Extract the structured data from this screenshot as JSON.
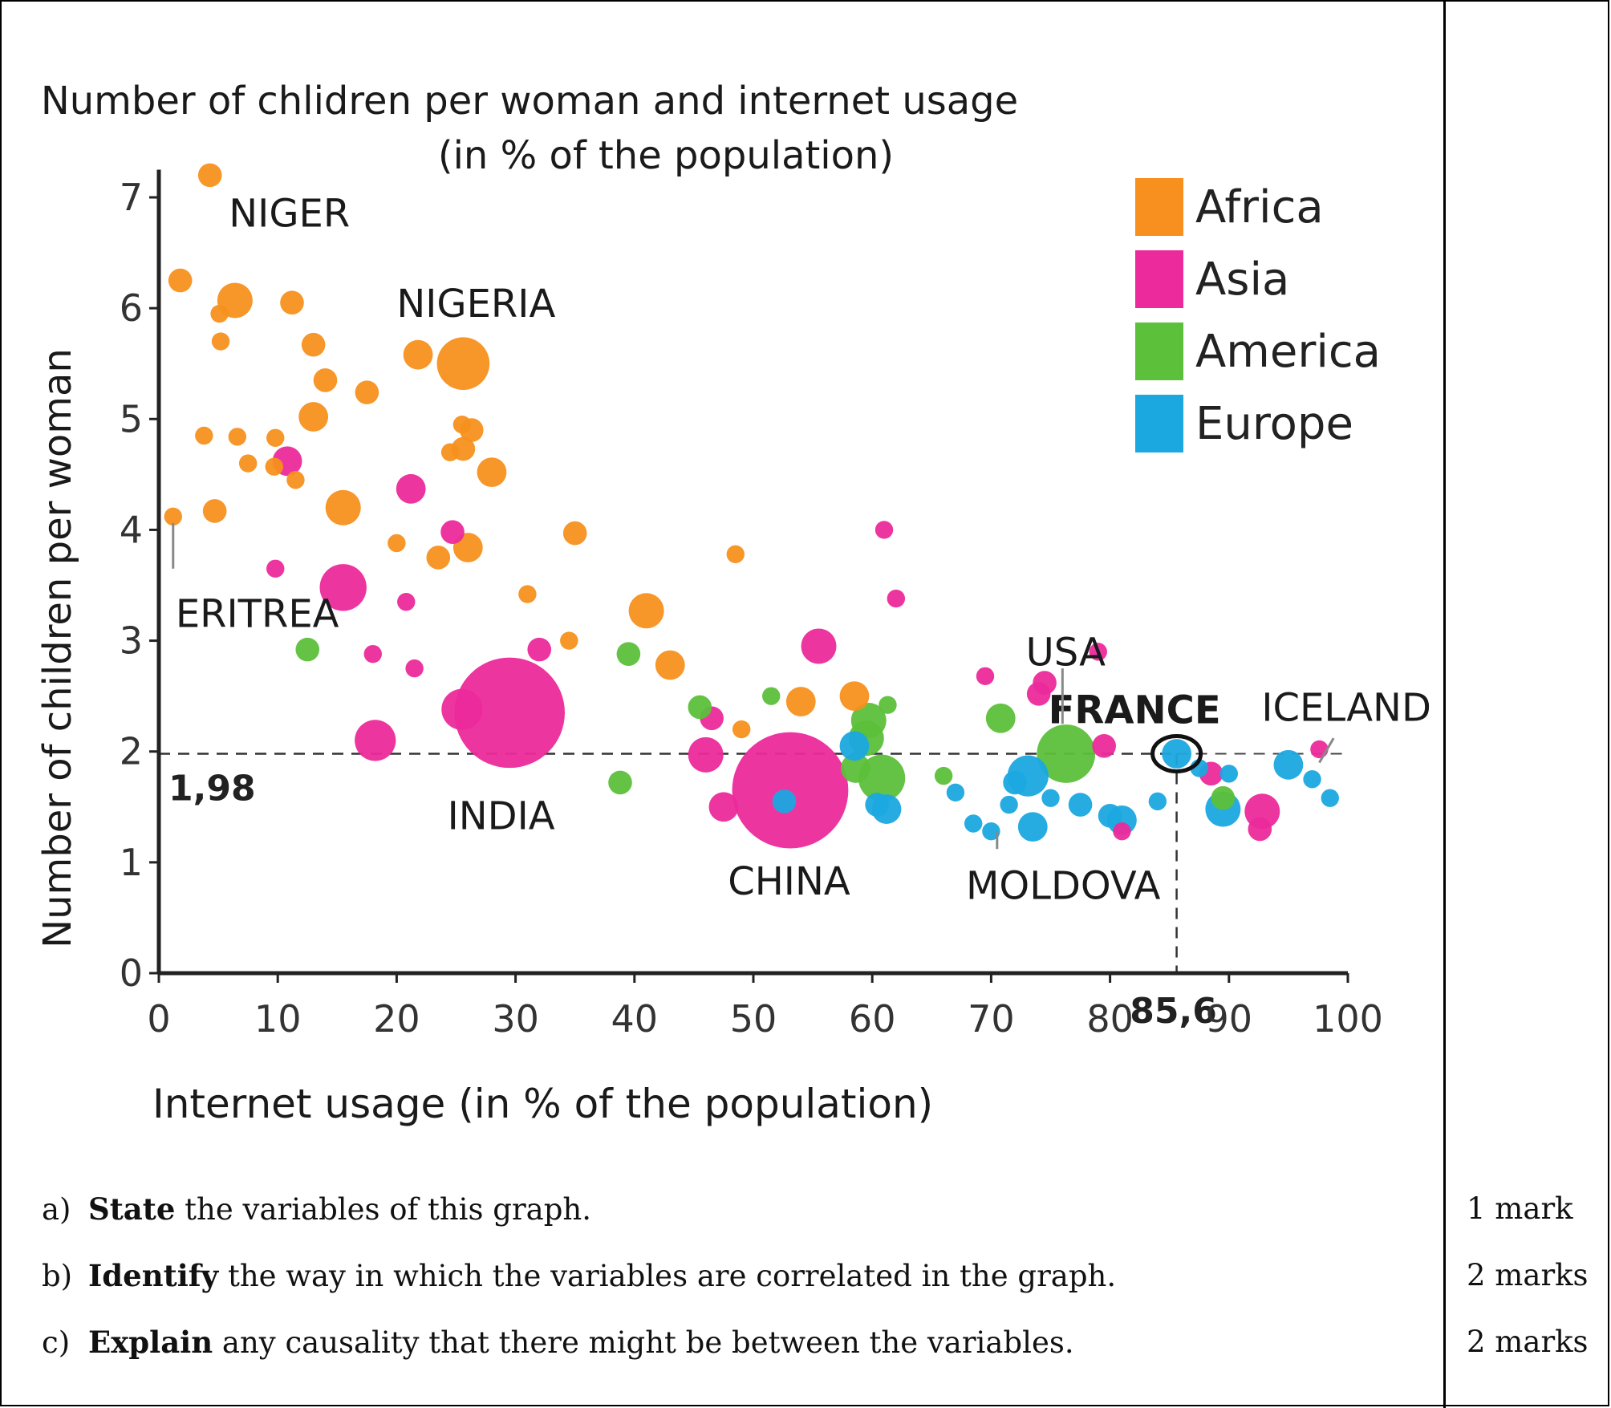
{
  "chart_data": {
    "type": "scatter",
    "title_line1": "Number of chlidren per woman and internet usage",
    "title_line2": "(in % of the population)",
    "xlabel": "Internet usage (in % of the population)",
    "ylabel": "Number of children per woman",
    "xlim": [
      0,
      100
    ],
    "ylim": [
      0,
      7
    ],
    "x_ticks": [
      0,
      10,
      20,
      30,
      40,
      50,
      60,
      70,
      80,
      90,
      100
    ],
    "y_ticks": [
      0,
      1,
      2,
      3,
      4,
      5,
      6,
      7
    ],
    "legend_position": "top-right",
    "legend": [
      {
        "name": "Africa",
        "color": "#f7901e"
      },
      {
        "name": "Asia",
        "color": "#ec2a9b"
      },
      {
        "name": "America",
        "color": "#5cc03a"
      },
      {
        "name": "Europe",
        "color": "#1ba8e0"
      }
    ],
    "reference": {
      "x": 85.6,
      "y": 1.98,
      "x_label": "85,6",
      "y_label": "1,98"
    },
    "country_labels": [
      {
        "text": "NIGER",
        "x": 4,
        "y": 7.2
      },
      {
        "text": "NIGERIA",
        "x": 26,
        "y": 5.5
      },
      {
        "text": "ERITREA",
        "x": 1,
        "y": 4.1
      },
      {
        "text": "INDIA",
        "x": 30,
        "y": 2.35
      },
      {
        "text": "CHINA",
        "x": 53,
        "y": 1.65
      },
      {
        "text": "USA",
        "x": 76,
        "y": 1.98
      },
      {
        "text": "MOLDOVA",
        "x": 71,
        "y": 1.25
      },
      {
        "text": "FRANCE",
        "x": 85.6,
        "y": 1.98
      },
      {
        "text": "ICELAND",
        "x": 98,
        "y": 2.0
      }
    ],
    "series": [
      {
        "name": "Africa",
        "points": [
          {
            "x": 4.3,
            "y": 7.2,
            "s": 3
          },
          {
            "x": 1.8,
            "y": 6.25,
            "s": 3
          },
          {
            "x": 6.4,
            "y": 6.07,
            "s": 5
          },
          {
            "x": 11.2,
            "y": 6.05,
            "s": 3
          },
          {
            "x": 5.1,
            "y": 5.95,
            "s": 2
          },
          {
            "x": 13,
            "y": 5.67,
            "s": 3
          },
          {
            "x": 5.2,
            "y": 5.7,
            "s": 2
          },
          {
            "x": 21.8,
            "y": 5.58,
            "s": 4
          },
          {
            "x": 25.6,
            "y": 5.5,
            "s": 8
          },
          {
            "x": 14,
            "y": 5.35,
            "s": 3
          },
          {
            "x": 17.5,
            "y": 5.24,
            "s": 3
          },
          {
            "x": 13,
            "y": 5.02,
            "s": 4
          },
          {
            "x": 25.5,
            "y": 4.95,
            "s": 2
          },
          {
            "x": 26.3,
            "y": 4.9,
            "s": 3
          },
          {
            "x": 3.8,
            "y": 4.85,
            "s": 2
          },
          {
            "x": 6.6,
            "y": 4.84,
            "s": 2
          },
          {
            "x": 9.8,
            "y": 4.83,
            "s": 2
          },
          {
            "x": 25.6,
            "y": 4.73,
            "s": 3
          },
          {
            "x": 24.5,
            "y": 4.7,
            "s": 2
          },
          {
            "x": 9.7,
            "y": 4.57,
            "s": 2
          },
          {
            "x": 7.5,
            "y": 4.6,
            "s": 2
          },
          {
            "x": 11.5,
            "y": 4.45,
            "s": 2
          },
          {
            "x": 28,
            "y": 4.52,
            "s": 4
          },
          {
            "x": 4.7,
            "y": 4.17,
            "s": 3
          },
          {
            "x": 15.5,
            "y": 4.2,
            "s": 5
          },
          {
            "x": 1.2,
            "y": 4.12,
            "s": 2
          },
          {
            "x": 35,
            "y": 3.97,
            "s": 3
          },
          {
            "x": 20,
            "y": 3.88,
            "s": 2
          },
          {
            "x": 26,
            "y": 3.84,
            "s": 4
          },
          {
            "x": 23.5,
            "y": 3.75,
            "s": 3
          },
          {
            "x": 41,
            "y": 3.27,
            "s": 5
          },
          {
            "x": 43,
            "y": 2.78,
            "s": 4
          },
          {
            "x": 31,
            "y": 3.42,
            "s": 2
          },
          {
            "x": 48.5,
            "y": 3.78,
            "s": 2
          },
          {
            "x": 34.5,
            "y": 3.0,
            "s": 2
          },
          {
            "x": 54,
            "y": 2.45,
            "s": 4
          },
          {
            "x": 58.5,
            "y": 2.5,
            "s": 4
          },
          {
            "x": 49,
            "y": 2.2,
            "s": 2
          }
        ]
      },
      {
        "name": "Asia",
        "points": [
          {
            "x": 10.8,
            "y": 4.62,
            "s": 4
          },
          {
            "x": 21.2,
            "y": 4.37,
            "s": 4
          },
          {
            "x": 24.7,
            "y": 3.98,
            "s": 3
          },
          {
            "x": 9.8,
            "y": 3.65,
            "s": 2
          },
          {
            "x": 15.5,
            "y": 3.48,
            "s": 7
          },
          {
            "x": 20.8,
            "y": 3.35,
            "s": 2
          },
          {
            "x": 18,
            "y": 2.88,
            "s": 2
          },
          {
            "x": 21.5,
            "y": 2.75,
            "s": 2
          },
          {
            "x": 32,
            "y": 2.92,
            "s": 3
          },
          {
            "x": 29.5,
            "y": 2.35,
            "s": 18
          },
          {
            "x": 25.5,
            "y": 2.38,
            "s": 6
          },
          {
            "x": 18.2,
            "y": 2.1,
            "s": 6
          },
          {
            "x": 46.5,
            "y": 2.3,
            "s": 3
          },
          {
            "x": 46,
            "y": 1.97,
            "s": 5
          },
          {
            "x": 47.5,
            "y": 1.5,
            "s": 4
          },
          {
            "x": 55.5,
            "y": 2.95,
            "s": 5
          },
          {
            "x": 53.1,
            "y": 1.65,
            "s": 19
          },
          {
            "x": 61,
            "y": 4.0,
            "s": 2
          },
          {
            "x": 62,
            "y": 3.38,
            "s": 2
          },
          {
            "x": 69.5,
            "y": 2.68,
            "s": 2
          },
          {
            "x": 74.5,
            "y": 2.62,
            "s": 3
          },
          {
            "x": 74,
            "y": 2.52,
            "s": 3
          },
          {
            "x": 79.5,
            "y": 2.05,
            "s": 3
          },
          {
            "x": 79,
            "y": 2.9,
            "s": 2
          },
          {
            "x": 88.5,
            "y": 1.8,
            "s": 3
          },
          {
            "x": 92.8,
            "y": 1.46,
            "s": 5
          },
          {
            "x": 92.6,
            "y": 1.3,
            "s": 3
          },
          {
            "x": 97.6,
            "y": 2.02,
            "s": 2
          },
          {
            "x": 81,
            "y": 1.28,
            "s": 2
          }
        ]
      },
      {
        "name": "America",
        "points": [
          {
            "x": 12.5,
            "y": 2.92,
            "s": 3
          },
          {
            "x": 38.8,
            "y": 1.72,
            "s": 3
          },
          {
            "x": 39.5,
            "y": 2.88,
            "s": 3
          },
          {
            "x": 45.5,
            "y": 2.4,
            "s": 3
          },
          {
            "x": 59.7,
            "y": 2.28,
            "s": 5
          },
          {
            "x": 59.5,
            "y": 2.12,
            "s": 5
          },
          {
            "x": 58.6,
            "y": 1.85,
            "s": 4
          },
          {
            "x": 60.8,
            "y": 1.76,
            "s": 7
          },
          {
            "x": 61.3,
            "y": 2.42,
            "s": 2
          },
          {
            "x": 66,
            "y": 1.78,
            "s": 2
          },
          {
            "x": 70.8,
            "y": 2.3,
            "s": 4
          },
          {
            "x": 76.3,
            "y": 1.98,
            "s": 9
          },
          {
            "x": 89.5,
            "y": 1.58,
            "s": 3
          },
          {
            "x": 51.5,
            "y": 2.5,
            "s": 2
          }
        ]
      },
      {
        "name": "Europe",
        "points": [
          {
            "x": 52.6,
            "y": 1.55,
            "s": 3
          },
          {
            "x": 58.5,
            "y": 2.05,
            "s": 4
          },
          {
            "x": 60.4,
            "y": 1.52,
            "s": 3
          },
          {
            "x": 61.2,
            "y": 1.48,
            "s": 4
          },
          {
            "x": 67,
            "y": 1.63,
            "s": 2
          },
          {
            "x": 68.5,
            "y": 1.35,
            "s": 2
          },
          {
            "x": 70,
            "y": 1.28,
            "s": 2
          },
          {
            "x": 73.1,
            "y": 1.78,
            "s": 6
          },
          {
            "x": 72,
            "y": 1.72,
            "s": 3
          },
          {
            "x": 73.5,
            "y": 1.32,
            "s": 4
          },
          {
            "x": 71.5,
            "y": 1.52,
            "s": 2
          },
          {
            "x": 75,
            "y": 1.58,
            "s": 2
          },
          {
            "x": 77.5,
            "y": 1.52,
            "s": 3
          },
          {
            "x": 80,
            "y": 1.42,
            "s": 3
          },
          {
            "x": 81,
            "y": 1.38,
            "s": 4
          },
          {
            "x": 84,
            "y": 1.55,
            "s": 2
          },
          {
            "x": 85.6,
            "y": 1.98,
            "s": 4
          },
          {
            "x": 87.5,
            "y": 1.85,
            "s": 2
          },
          {
            "x": 89.5,
            "y": 1.48,
            "s": 5
          },
          {
            "x": 90,
            "y": 1.8,
            "s": 2
          },
          {
            "x": 95,
            "y": 1.88,
            "s": 4
          },
          {
            "x": 97,
            "y": 1.75,
            "s": 2
          },
          {
            "x": 98.5,
            "y": 1.58,
            "s": 2
          }
        ]
      }
    ]
  },
  "questions": [
    {
      "label": "a)",
      "verb": "State",
      "text": " the variables of this graph.",
      "marks": "1 mark"
    },
    {
      "label": "b)",
      "verb": "Identify",
      "text": " the way in which the variables are correlated in the graph.",
      "marks": "2 marks"
    },
    {
      "label": "c)",
      "verb": "Explain",
      "text": " any causality that there might be between the variables.",
      "marks": "2 marks"
    }
  ]
}
